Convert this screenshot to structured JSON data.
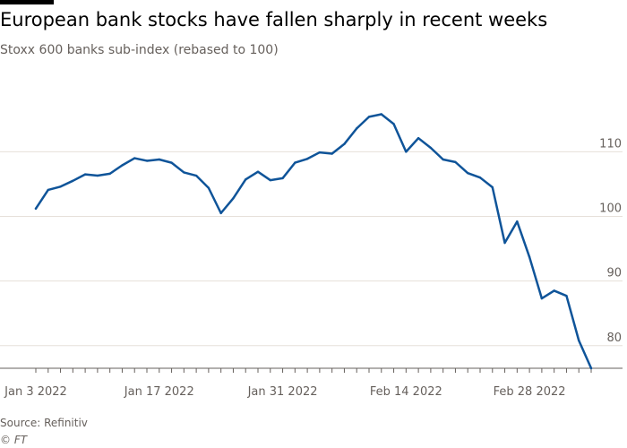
{
  "header": {
    "title": "European bank stocks have fallen sharply in recent weeks",
    "subtitle": "Stoxx 600 banks sub-index (rebased to 100)"
  },
  "footer": {
    "source": "Source: Refinitiv",
    "credit": "© FT"
  },
  "colors": {
    "line": "#0f5499",
    "grid": "#e6e0da",
    "axis": "#66605c",
    "text": "#66605c"
  },
  "chart_data": {
    "type": "line",
    "title": "European bank stocks have fallen sharply in recent weeks",
    "subtitle": "Stoxx 600 banks sub-index (rebased to 100)",
    "xlabel": "",
    "ylabel": "",
    "ylim": [
      76.5,
      121
    ],
    "yticks": [
      80,
      90,
      100,
      110
    ],
    "y_axis_position": "right",
    "grid": "horizontal",
    "legend": "none",
    "x_ticks": [
      {
        "index": 0,
        "label": "Jan 3 2022"
      },
      {
        "index": 10,
        "label": "Jan 17 2022"
      },
      {
        "index": 20,
        "label": "Jan 31 2022"
      },
      {
        "index": 30,
        "label": "Feb 14 2022"
      },
      {
        "index": 40,
        "label": "Feb 28 2022"
      }
    ],
    "series": [
      {
        "values": [
          101.2,
          104.1,
          104.6,
          105.5,
          106.5,
          106.3,
          106.6,
          107.9,
          109.0,
          108.6,
          108.8,
          108.3,
          106.8,
          106.3,
          104.4,
          100.5,
          102.8,
          105.7,
          106.9,
          105.6,
          105.9,
          108.3,
          108.9,
          109.9,
          109.7,
          111.2,
          113.6,
          115.4,
          115.8,
          114.3,
          110.0,
          112.1,
          110.6,
          108.8,
          108.4,
          106.7,
          106.0,
          104.5,
          95.9,
          99.2,
          93.7,
          87.3,
          88.5,
          87.7,
          80.8,
          76.5
        ]
      }
    ]
  }
}
